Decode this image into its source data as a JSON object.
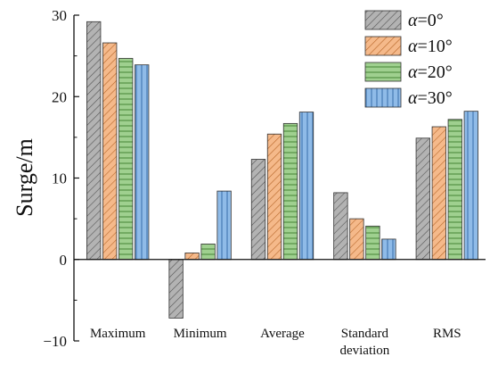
{
  "chart_data": {
    "type": "bar",
    "ylabel": "Surge/m",
    "ylim": [
      -10,
      30
    ],
    "yticks": [
      -10,
      0,
      10,
      20,
      30
    ],
    "categories": [
      [
        "Maximum"
      ],
      [
        "Minimum"
      ],
      [
        "Average"
      ],
      [
        "Standard",
        "deviation"
      ],
      [
        "RMS"
      ]
    ],
    "series": [
      {
        "name_symbol": "α",
        "name_value": "=0°",
        "values": [
          29.2,
          -7.2,
          12.3,
          8.2,
          14.9
        ],
        "color": "#b3b3b3",
        "stroke": "#555555",
        "pattern": "diagonal"
      },
      {
        "name_symbol": "α",
        "name_value": "=10°",
        "values": [
          26.6,
          0.8,
          15.4,
          5.0,
          16.3
        ],
        "color": "#f5b98a",
        "stroke": "#b8682c",
        "pattern": "diagonal"
      },
      {
        "name_symbol": "α",
        "name_value": "=20°",
        "values": [
          24.7,
          1.9,
          16.7,
          4.1,
          17.2
        ],
        "color": "#9fd08f",
        "stroke": "#4e8a3e",
        "pattern": "horizontal"
      },
      {
        "name_symbol": "α",
        "name_value": "=30°",
        "values": [
          23.9,
          8.4,
          18.1,
          2.5,
          18.2
        ],
        "color": "#8fbbe8",
        "stroke": "#3f73b0",
        "pattern": "vertical"
      }
    ],
    "legend_position": "top-right",
    "grid": false
  }
}
